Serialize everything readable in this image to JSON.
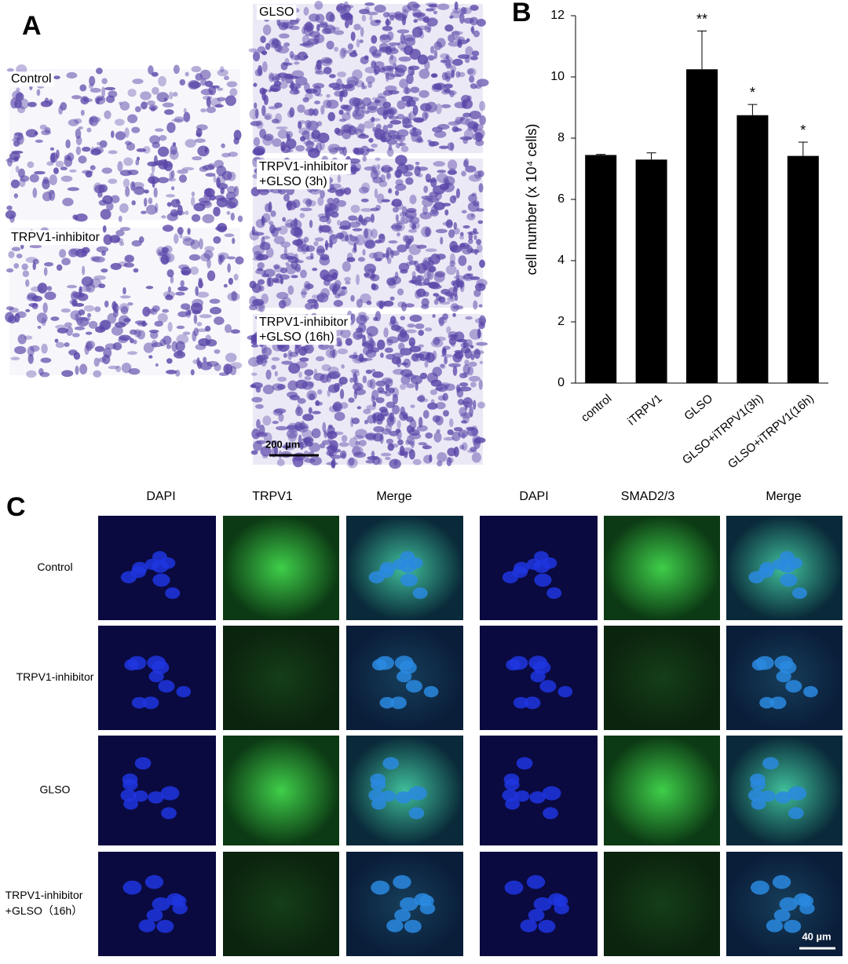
{
  "panel_labels": [
    "A",
    "B",
    "C"
  ],
  "panel_a": {
    "images": [
      {
        "lines": [
          "Control"
        ]
      },
      {
        "lines": [
          "TRPV1-inhibitor"
        ]
      },
      {
        "lines": [
          "GLSO"
        ]
      },
      {
        "lines": [
          "TRPV1-inhibitor",
          "+GLSO (3h)"
        ]
      },
      {
        "lines": [
          "TRPV1-inhibitor",
          "+GLSO (16h)"
        ]
      }
    ],
    "scale_bar": "200 µm"
  },
  "chart_data": {
    "type": "bar",
    "categories": [
      "control",
      "iTRPV1",
      "GLSO",
      "GLSO+iTRPV1(3h)",
      "GLSO+iTRPV1(16h)"
    ],
    "values": [
      7.45,
      7.3,
      10.25,
      8.75,
      7.42
    ],
    "errors": [
      0.02,
      0.22,
      1.25,
      0.35,
      0.45
    ],
    "significance": [
      null,
      null,
      "**",
      "*",
      "*"
    ],
    "color": "#000000",
    "ylabel": "cell number (x 10⁴ cells)",
    "ylim": [
      0,
      12
    ],
    "yticks": [
      0,
      2,
      4,
      6,
      8,
      10,
      12
    ],
    "grid": false
  },
  "panel_c": {
    "column_headers": [
      "DAPI",
      "TRPV1",
      "Merge",
      "DAPI",
      "SMAD2/3",
      "Merge"
    ],
    "row_labels": [
      [
        "Control"
      ],
      [
        "TRPV1-inhibitor"
      ],
      [
        "GLSO"
      ],
      [
        "TRPV1-inhibitor",
        "+GLSO（16h）"
      ]
    ],
    "scale_bar": "40 µm"
  }
}
